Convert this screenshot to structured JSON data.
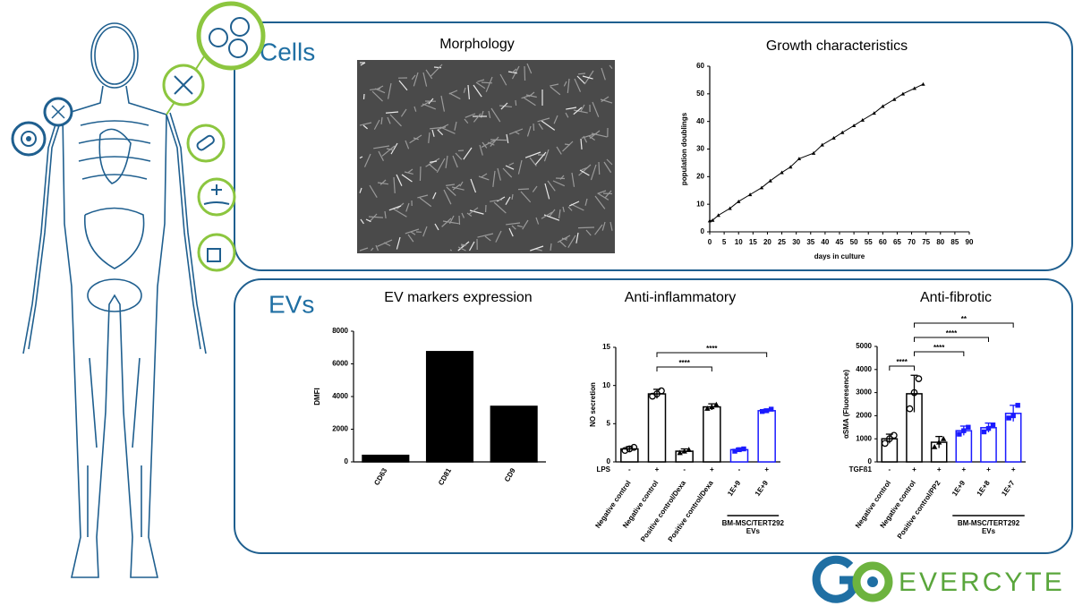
{
  "sections": {
    "cells": "Cells",
    "evs": "EVs",
    "morphology": "Morphology"
  },
  "logo": {
    "text": "EVERCYTE"
  },
  "chart_data": [
    {
      "type": "line",
      "title": "Growth characteristics",
      "x_label": "days in culture",
      "y_label": "population doublings",
      "x": [
        0,
        1,
        3,
        7,
        10,
        14,
        18,
        21,
        25,
        28,
        31,
        36,
        39,
        43,
        46,
        50,
        53,
        57,
        60,
        64,
        67,
        71,
        74
      ],
      "y": [
        4,
        4.2,
        6,
        8.5,
        11,
        13.5,
        16,
        18.5,
        21.5,
        23.5,
        26.5,
        28.5,
        31.5,
        34,
        36,
        38.5,
        40.5,
        43,
        45.5,
        48,
        50,
        52,
        53.5
      ],
      "color": "#000000",
      "marker": "triangle",
      "xlim": [
        0,
        90
      ],
      "xticks": [
        0,
        5,
        10,
        15,
        20,
        25,
        30,
        35,
        40,
        45,
        50,
        55,
        60,
        65,
        70,
        75,
        80,
        85,
        90
      ],
      "ylim": [
        0,
        60
      ],
      "yticks": [
        0,
        10,
        20,
        30,
        40,
        50,
        60
      ]
    },
    {
      "type": "bar",
      "title": "EV markers expression",
      "y_label": "DMFI",
      "categories": [
        "CD63",
        "CD81",
        "CD9"
      ],
      "values": [
        400,
        6750,
        3400
      ],
      "color": "#000000",
      "ylim": [
        0,
        8000
      ],
      "yticks": [
        0,
        2000,
        4000,
        6000,
        8000
      ]
    },
    {
      "type": "bar",
      "title": "Anti-inflammatory",
      "y_label": "NO secretion",
      "categories": [
        "Negative control",
        "Negative control",
        "Positive control/Dexa",
        "Positive control/Dexa",
        "1E+9",
        "1E+9"
      ],
      "row_label": "LPS",
      "row": [
        "-",
        "+",
        "-",
        "+",
        "-",
        "+"
      ],
      "values": [
        1.7,
        8.9,
        1.4,
        7.2,
        1.6,
        6.7
      ],
      "errors": [
        0.3,
        0.6,
        0.3,
        0.4,
        0.2,
        0.2
      ],
      "points": [
        [
          1.5,
          1.7,
          1.9
        ],
        [
          8.6,
          8.9,
          9.3
        ],
        [
          1.2,
          1.4,
          1.6
        ],
        [
          7.0,
          7.2,
          7.5
        ],
        [
          1.4,
          1.6,
          1.7
        ],
        [
          6.6,
          6.7,
          6.9
        ]
      ],
      "markers": [
        "circle",
        "circle",
        "triangle",
        "triangle",
        "square",
        "square"
      ],
      "colors": [
        "#000000",
        "#000000",
        "#000000",
        "#000000",
        "#1a1aff",
        "#1a1aff"
      ],
      "bar_fill": "#ffffff",
      "comparisons": [
        {
          "bars": [
            1,
            3
          ],
          "label": "****"
        },
        {
          "bars": [
            1,
            5
          ],
          "label": "****"
        }
      ],
      "group": {
        "label": [
          "BM-MSC/TERT292",
          "EVs"
        ],
        "bars": [
          4,
          5
        ]
      },
      "ylim": [
        0,
        15
      ],
      "yticks": [
        0,
        5,
        10,
        15
      ]
    },
    {
      "type": "bar",
      "title": "Anti-fibrotic",
      "y_label": "αSMA (Fluoresence)",
      "categories": [
        "Negative control",
        "Negative control",
        "Positive control/PP2",
        "1E+9",
        "1E+8",
        "1E+7"
      ],
      "row_label": "TGFß1",
      "row": [
        "-",
        "+",
        "+",
        "+",
        "+",
        "+"
      ],
      "values": [
        1000,
        2950,
        850,
        1350,
        1480,
        2100
      ],
      "errors": [
        200,
        800,
        250,
        200,
        200,
        350
      ],
      "points": [
        [
          800,
          1000,
          1150
        ],
        [
          2300,
          3000,
          3600
        ],
        [
          650,
          850,
          1000
        ],
        [
          1200,
          1350,
          1500
        ],
        [
          1300,
          1450,
          1600
        ],
        [
          1900,
          2000,
          2450
        ]
      ],
      "markers": [
        "circle",
        "circle",
        "triangle",
        "square",
        "square",
        "square"
      ],
      "colors": [
        "#000000",
        "#000000",
        "#000000",
        "#1a1aff",
        "#1a1aff",
        "#1a1aff"
      ],
      "bar_fill": "#ffffff",
      "comparisons": [
        {
          "bars": [
            0,
            1
          ],
          "label": "****"
        },
        {
          "bars": [
            1,
            3
          ],
          "label": "****"
        },
        {
          "bars": [
            1,
            4
          ],
          "label": "****"
        },
        {
          "bars": [
            1,
            5
          ],
          "label": "**"
        }
      ],
      "group": {
        "label": [
          "BM-MSC/TERT292",
          "EVs"
        ],
        "bars": [
          3,
          5
        ]
      },
      "ylim": [
        0,
        5000
      ],
      "yticks": [
        0,
        1000,
        2000,
        3000,
        4000,
        5000
      ]
    }
  ]
}
